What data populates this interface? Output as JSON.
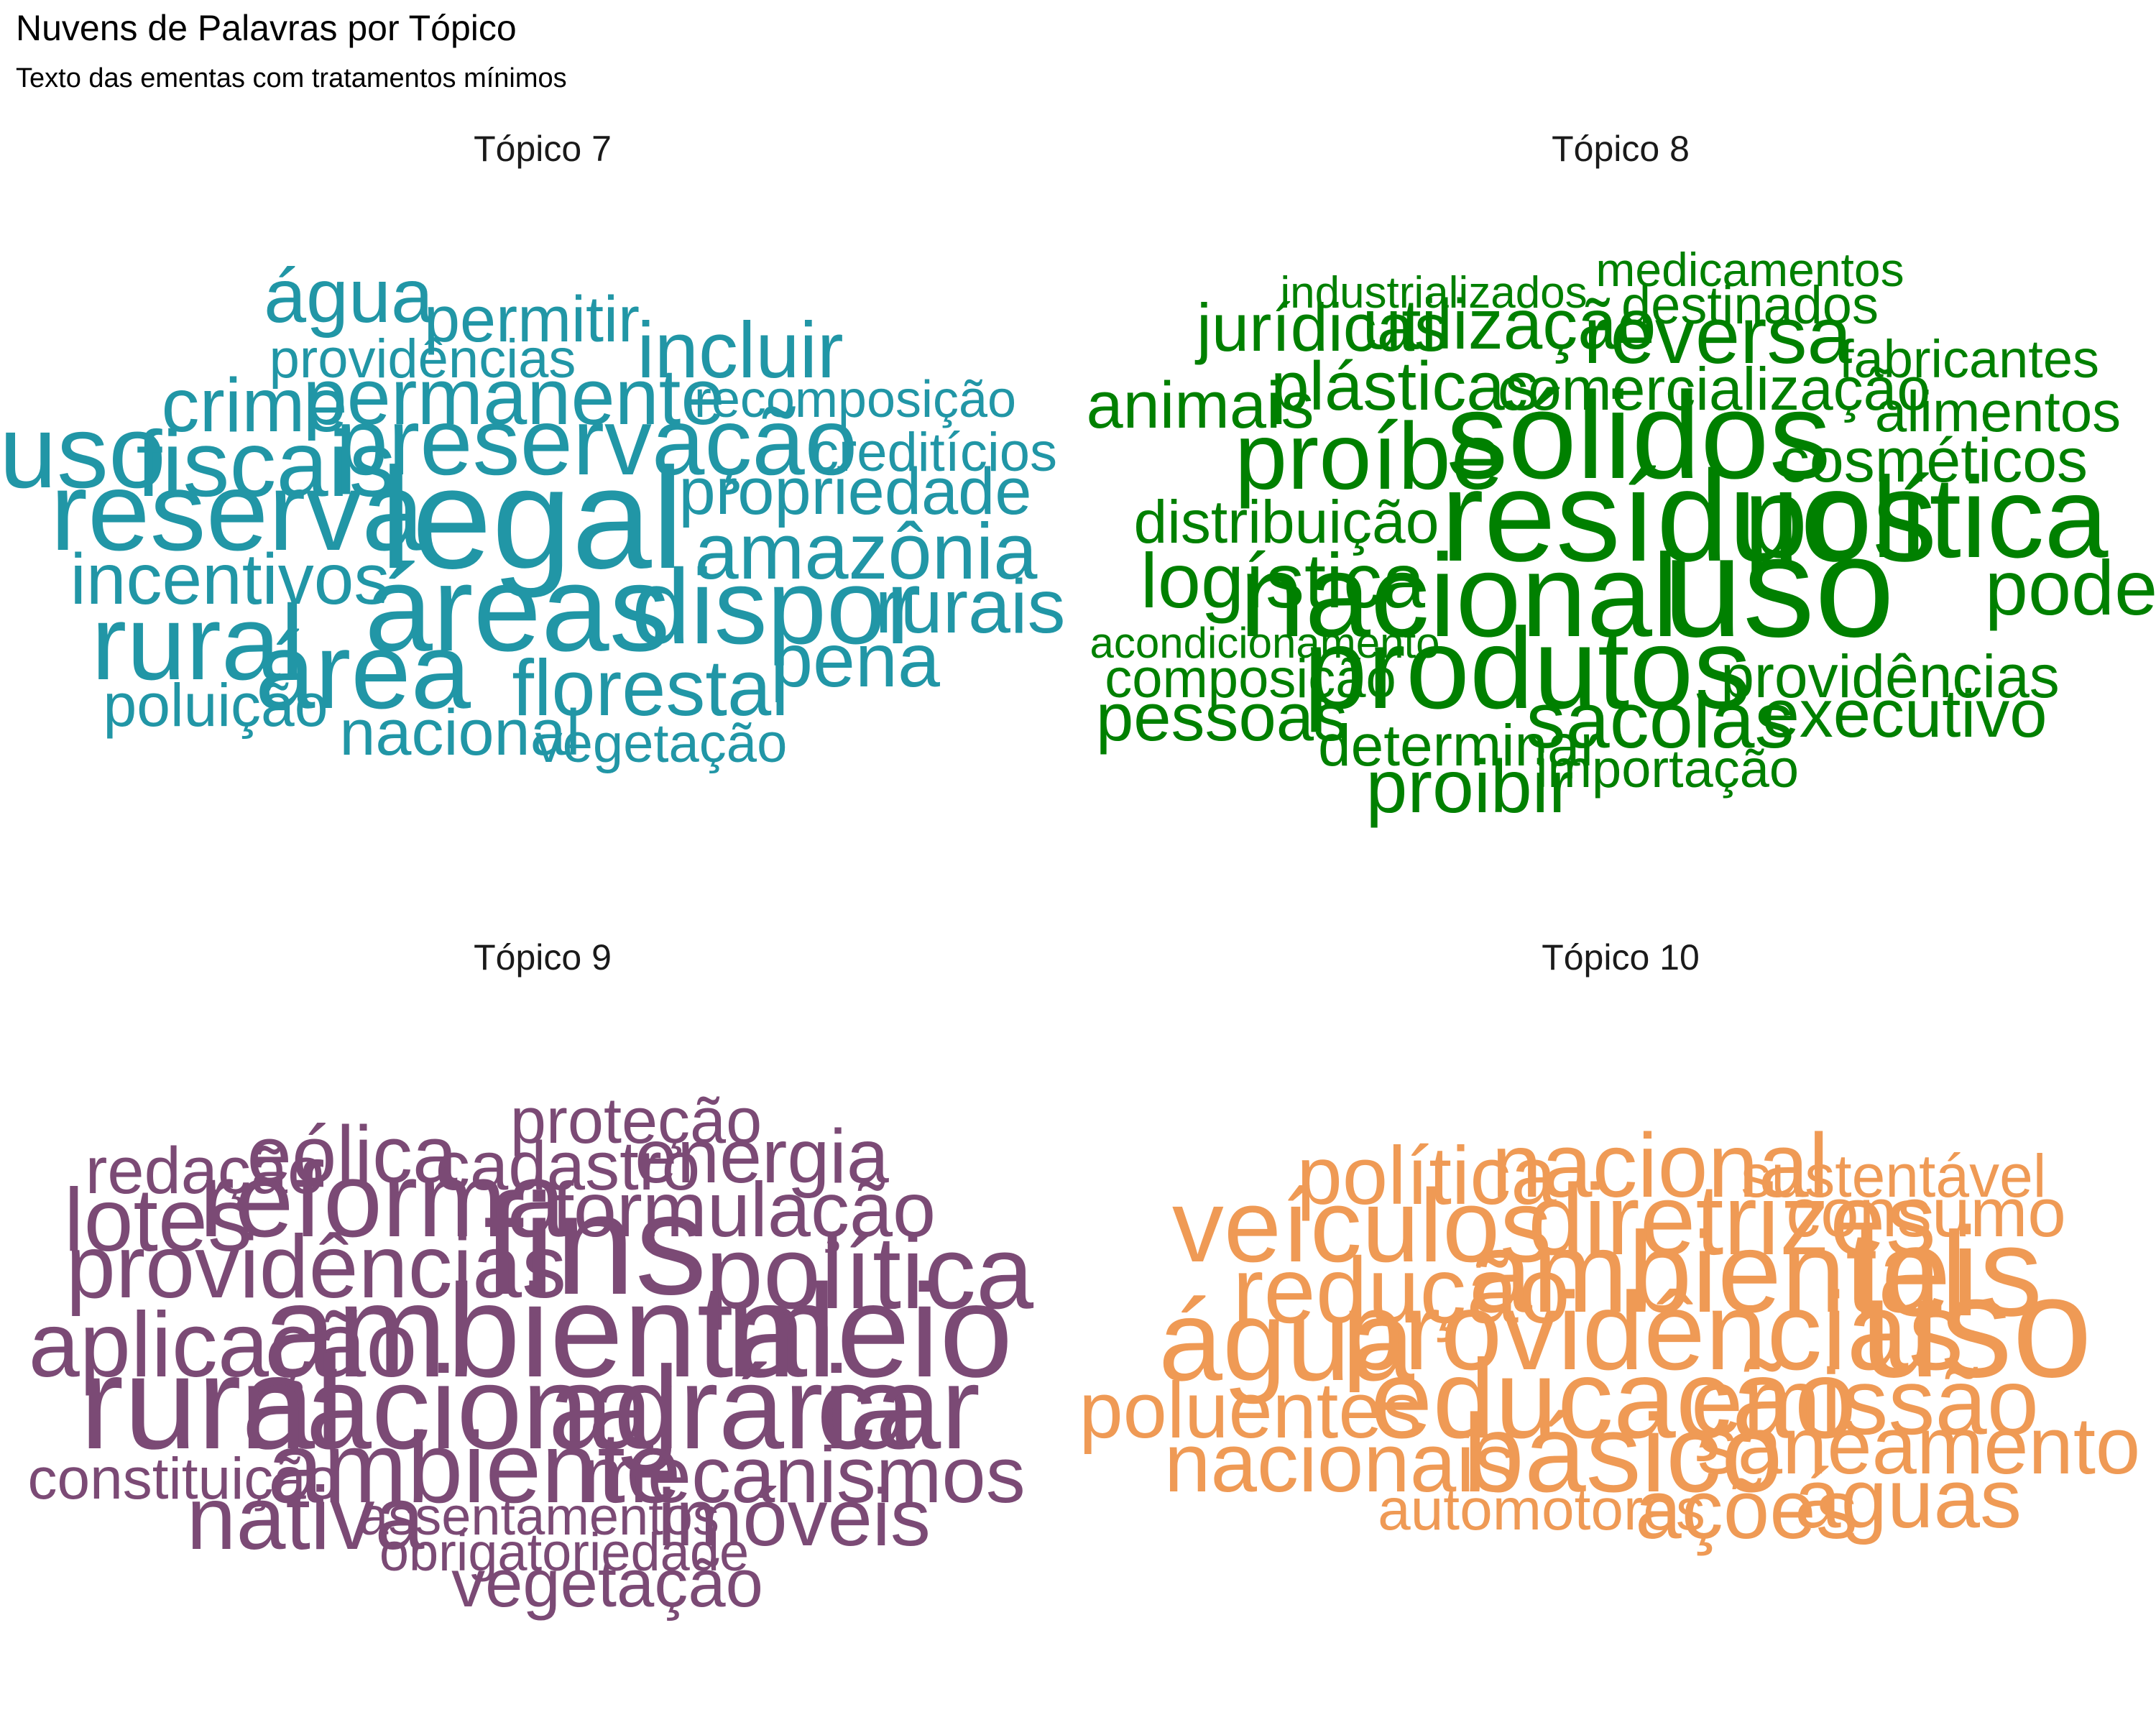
{
  "title": "Nuvens de Palavras por Tópico",
  "subtitle": "Texto das ementas com tratamentos mínimos",
  "chart_data": [
    {
      "type": "wordcloud",
      "title": "Tópico 7",
      "color": "#2196a6",
      "words": [
        {
          "text": "água",
          "size": 0.53
        },
        {
          "text": "permitir",
          "size": 0.45
        },
        {
          "text": "providências",
          "size": 0.38
        },
        {
          "text": "incluir",
          "size": 0.55
        },
        {
          "text": "crime",
          "size": 0.53
        },
        {
          "text": "permanente",
          "size": 0.55
        },
        {
          "text": "recomposição",
          "size": 0.36
        },
        {
          "text": "uso",
          "size": 0.72
        },
        {
          "text": "fiscais",
          "size": 0.65
        },
        {
          "text": "preservação",
          "size": 0.66
        },
        {
          "text": "creditícios",
          "size": 0.38
        },
        {
          "text": "propriedade",
          "size": 0.46
        },
        {
          "text": "reserva",
          "size": 0.78
        },
        {
          "text": "legal",
          "size": 1.0
        },
        {
          "text": "amazônia",
          "size": 0.55
        },
        {
          "text": "incentivos",
          "size": 0.5
        },
        {
          "text": "áreas",
          "size": 0.85
        },
        {
          "text": "dispor",
          "size": 0.74
        },
        {
          "text": "rurais",
          "size": 0.53
        },
        {
          "text": "rural",
          "size": 0.74
        },
        {
          "text": "pena",
          "size": 0.53
        },
        {
          "text": "área",
          "size": 0.75
        },
        {
          "text": "florestal",
          "size": 0.55
        },
        {
          "text": "poluição",
          "size": 0.42
        },
        {
          "text": "nacional",
          "size": 0.45
        },
        {
          "text": "vegetação",
          "size": 0.38
        }
      ]
    },
    {
      "type": "wordcloud",
      "title": "Tópico 8",
      "color": "#008000",
      "words": [
        {
          "text": "medicamentos",
          "size": 0.33
        },
        {
          "text": "industrializados",
          "size": 0.31
        },
        {
          "text": "destinados",
          "size": 0.37
        },
        {
          "text": "jurídicas",
          "size": 0.47
        },
        {
          "text": "utilização",
          "size": 0.49
        },
        {
          "text": "reversa",
          "size": 0.56
        },
        {
          "text": "fabricantes",
          "size": 0.37
        },
        {
          "text": "animais",
          "size": 0.46
        },
        {
          "text": "plásticas",
          "size": 0.48
        },
        {
          "text": "comercialização",
          "size": 0.42
        },
        {
          "text": "alimentos",
          "size": 0.4
        },
        {
          "text": "proíbe",
          "size": 0.66
        },
        {
          "text": "sólidos",
          "size": 0.86
        },
        {
          "text": "cosméticos",
          "size": 0.43
        },
        {
          "text": "distribuição",
          "size": 0.42
        },
        {
          "text": "resíduos",
          "size": 0.9
        },
        {
          "text": "política",
          "size": 0.8
        },
        {
          "text": "logística",
          "size": 0.54
        },
        {
          "text": "uso",
          "size": 1.0
        },
        {
          "text": "poder",
          "size": 0.54
        },
        {
          "text": "nacional",
          "size": 0.82
        },
        {
          "text": "acondicionamento",
          "size": 0.3
        },
        {
          "text": "composição",
          "size": 0.38
        },
        {
          "text": "produtos",
          "size": 0.8
        },
        {
          "text": "providências",
          "size": 0.42
        },
        {
          "text": "pessoas",
          "size": 0.47
        },
        {
          "text": "sacolas",
          "size": 0.55
        },
        {
          "text": "executivo",
          "size": 0.47
        },
        {
          "text": "determinar",
          "size": 0.41
        },
        {
          "text": "importação",
          "size": 0.37
        },
        {
          "text": "proibir",
          "size": 0.52
        }
      ]
    },
    {
      "type": "wordcloud",
      "title": "Tópico 9",
      "color": "#7b4a75",
      "words": [
        {
          "text": "proteção",
          "size": 0.45
        },
        {
          "text": "redação",
          "size": 0.46
        },
        {
          "text": "eólica",
          "size": 0.56
        },
        {
          "text": "cadastro",
          "size": 0.48
        },
        {
          "text": "energia",
          "size": 0.53
        },
        {
          "text": "lotes",
          "size": 0.62
        },
        {
          "text": "reforma",
          "size": 0.74
        },
        {
          "text": "formulação",
          "size": 0.54
        },
        {
          "text": "providências",
          "size": 0.62
        },
        {
          "text": "fins",
          "size": 1.0
        },
        {
          "text": "política",
          "size": 0.72
        },
        {
          "text": "aplicação",
          "size": 0.64
        },
        {
          "text": "ambiental",
          "size": 0.92
        },
        {
          "text": "meio",
          "size": 0.92
        },
        {
          "text": "rural",
          "size": 0.92
        },
        {
          "text": "nacional",
          "size": 0.82
        },
        {
          "text": "agrária",
          "size": 0.82
        },
        {
          "text": "car",
          "size": 0.82
        },
        {
          "text": "constituição",
          "size": 0.41
        },
        {
          "text": "ambiente",
          "size": 0.7
        },
        {
          "text": "mecanismos",
          "size": 0.55
        },
        {
          "text": "nativa",
          "size": 0.62
        },
        {
          "text": "assentamentos",
          "size": 0.37
        },
        {
          "text": "imóveis",
          "size": 0.56
        },
        {
          "text": "obrigatoriedade",
          "size": 0.37
        },
        {
          "text": "vegetação",
          "size": 0.47
        }
      ]
    },
    {
      "type": "wordcloud",
      "title": "Tópico 10",
      "color": "#ef9a55",
      "words": [
        {
          "text": "política",
          "size": 0.57
        },
        {
          "text": "nacional",
          "size": 0.63
        },
        {
          "text": "sustentável",
          "size": 0.42
        },
        {
          "text": "veículos",
          "size": 0.72
        },
        {
          "text": "diretrizes",
          "size": 0.7
        },
        {
          "text": "consumo",
          "size": 0.48
        },
        {
          "text": "redução",
          "size": 0.65
        },
        {
          "text": "ambiental",
          "size": 0.8
        },
        {
          "text": "leis",
          "size": 0.88
        },
        {
          "text": "água",
          "size": 0.8
        },
        {
          "text": "providências",
          "size": 0.77
        },
        {
          "text": "uso",
          "size": 1.0
        },
        {
          "text": "poluentes",
          "size": 0.55
        },
        {
          "text": "educação",
          "size": 0.78
        },
        {
          "text": "emissão",
          "size": 0.65
        },
        {
          "text": "nacionais",
          "size": 0.58
        },
        {
          "text": "básico",
          "size": 0.77
        },
        {
          "text": "saneamento",
          "size": 0.56
        },
        {
          "text": "automotores",
          "size": 0.41
        },
        {
          "text": "ações",
          "size": 0.58
        },
        {
          "text": "águas",
          "size": 0.58
        }
      ]
    }
  ]
}
